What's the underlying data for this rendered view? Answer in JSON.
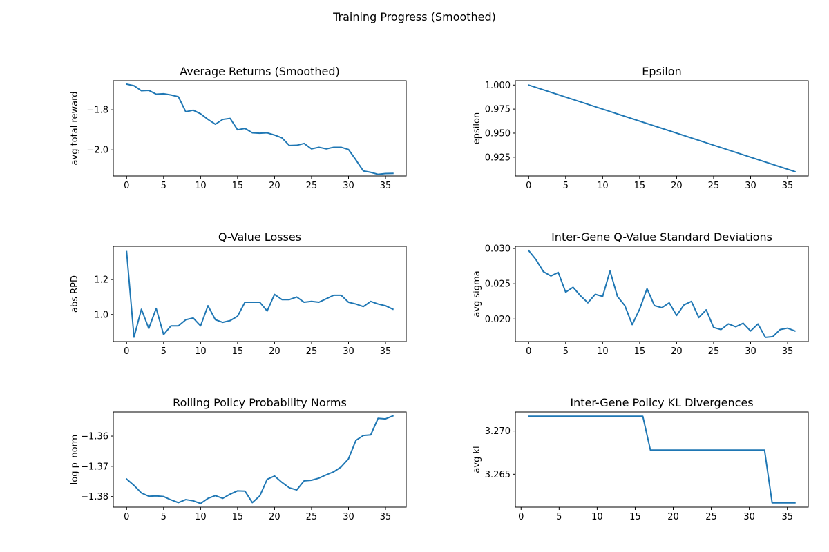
{
  "suptitle": "Training Progress (Smoothed)",
  "line_color": "#1f77b4",
  "chart_data": [
    {
      "type": "line",
      "title": "Average Returns (Smoothed)",
      "xlabel": "",
      "ylabel": "avg total reward",
      "xlim": [
        -1.8,
        37.8
      ],
      "ylim": [
        -2.13,
        -1.655
      ],
      "xticks": [
        0,
        5,
        10,
        15,
        20,
        25,
        30,
        35
      ],
      "yticks": [
        -2.0,
        -1.8
      ],
      "ytick_labels": [
        "−2.0",
        "−1.8"
      ],
      "x": [
        0,
        1,
        2,
        3,
        4,
        5,
        6,
        7,
        8,
        9,
        10,
        11,
        12,
        13,
        14,
        15,
        16,
        17,
        18,
        19,
        20,
        21,
        22,
        23,
        24,
        25,
        26,
        27,
        28,
        29,
        30,
        31,
        32,
        33,
        34,
        35,
        36
      ],
      "y": [
        -1.672,
        -1.68,
        -1.705,
        -1.703,
        -1.722,
        -1.72,
        -1.726,
        -1.735,
        -1.81,
        -1.802,
        -1.82,
        -1.848,
        -1.872,
        -1.848,
        -1.843,
        -1.9,
        -1.893,
        -1.915,
        -1.917,
        -1.915,
        -1.926,
        -1.94,
        -1.978,
        -1.977,
        -1.968,
        -1.995,
        -1.987,
        -1.995,
        -1.987,
        -1.987,
        -1.998,
        -2.05,
        -2.105,
        -2.112,
        -2.122,
        -2.118,
        -2.117
      ]
    },
    {
      "type": "line",
      "title": "Epsilon",
      "xlabel": "",
      "ylabel": "epsilon",
      "xlim": [
        -1.8,
        37.8
      ],
      "ylim": [
        0.9055,
        1.0045
      ],
      "xticks": [
        0,
        5,
        10,
        15,
        20,
        25,
        30,
        35
      ],
      "yticks": [
        0.925,
        0.95,
        0.975,
        1.0
      ],
      "ytick_labels": [
        "0.925",
        "0.950",
        "0.975",
        "1.000"
      ],
      "x": [
        0,
        36
      ],
      "y": [
        1.0,
        0.91
      ]
    },
    {
      "type": "line",
      "title": "Q-Value Losses",
      "xlabel": "",
      "ylabel": "abs RPD",
      "xlim": [
        -1.8,
        37.8
      ],
      "ylim": [
        0.845,
        1.39
      ],
      "xticks": [
        0,
        5,
        10,
        15,
        20,
        25,
        30,
        35
      ],
      "yticks": [
        1.0,
        1.2
      ],
      "ytick_labels": [
        "1.0",
        "1.2"
      ],
      "x": [
        0,
        1,
        2,
        3,
        4,
        5,
        6,
        7,
        8,
        9,
        10,
        11,
        12,
        13,
        14,
        15,
        16,
        17,
        18,
        19,
        20,
        21,
        22,
        23,
        24,
        25,
        26,
        27,
        28,
        29,
        30,
        31,
        32,
        33,
        34,
        35,
        36
      ],
      "y": [
        1.36,
        0.87,
        1.03,
        0.92,
        1.035,
        0.885,
        0.935,
        0.935,
        0.97,
        0.98,
        0.935,
        1.05,
        0.97,
        0.955,
        0.965,
        0.99,
        1.07,
        1.07,
        1.07,
        1.02,
        1.115,
        1.085,
        1.085,
        1.1,
        1.07,
        1.075,
        1.07,
        1.09,
        1.11,
        1.11,
        1.07,
        1.06,
        1.045,
        1.075,
        1.06,
        1.05,
        1.03
      ]
    },
    {
      "type": "line",
      "title": "Inter-Gene Q-Value Standard Deviations",
      "xlabel": "",
      "ylabel": "avg sigma",
      "xlim": [
        -1.8,
        37.8
      ],
      "ylim": [
        0.0168,
        0.0303
      ],
      "xticks": [
        0,
        5,
        10,
        15,
        20,
        25,
        30,
        35
      ],
      "yticks": [
        0.02,
        0.025,
        0.03
      ],
      "ytick_labels": [
        "0.020",
        "0.025",
        "0.030"
      ],
      "x": [
        0,
        1,
        2,
        3,
        4,
        5,
        6,
        7,
        8,
        9,
        10,
        11,
        12,
        13,
        14,
        15,
        16,
        17,
        18,
        19,
        20,
        21,
        22,
        23,
        24,
        25,
        26,
        27,
        28,
        29,
        30,
        31,
        32,
        33,
        34,
        35,
        36
      ],
      "y": [
        0.0297,
        0.0284,
        0.0267,
        0.0261,
        0.0266,
        0.0238,
        0.0245,
        0.0233,
        0.0223,
        0.0235,
        0.0232,
        0.0268,
        0.0232,
        0.0219,
        0.0192,
        0.0214,
        0.0243,
        0.0219,
        0.0216,
        0.0223,
        0.0205,
        0.022,
        0.0225,
        0.0202,
        0.0213,
        0.0188,
        0.0185,
        0.0193,
        0.0189,
        0.0194,
        0.0183,
        0.0193,
        0.0174,
        0.0175,
        0.0185,
        0.0187,
        0.0183
      ]
    },
    {
      "type": "line",
      "title": "Rolling Policy Probability Norms",
      "xlabel": "",
      "ylabel": "log p_norm",
      "xlim": [
        -1.8,
        37.8
      ],
      "ylim": [
        -1.3835,
        -1.352
      ],
      "xticks": [
        0,
        5,
        10,
        15,
        20,
        25,
        30,
        35
      ],
      "yticks": [
        -1.38,
        -1.37,
        -1.36
      ],
      "ytick_labels": [
        "−1.38",
        "−1.37",
        "−1.36"
      ],
      "x": [
        0,
        1,
        2,
        3,
        4,
        5,
        6,
        7,
        8,
        9,
        10,
        11,
        12,
        13,
        14,
        15,
        16,
        17,
        18,
        19,
        20,
        21,
        22,
        23,
        24,
        25,
        26,
        27,
        28,
        29,
        30,
        31,
        32,
        33,
        34,
        35,
        36
      ],
      "y": [
        -1.3742,
        -1.3763,
        -1.3788,
        -1.3799,
        -1.3798,
        -1.38,
        -1.3811,
        -1.382,
        -1.381,
        -1.3814,
        -1.3823,
        -1.3806,
        -1.3797,
        -1.3806,
        -1.3792,
        -1.3781,
        -1.3782,
        -1.382,
        -1.3798,
        -1.3743,
        -1.3732,
        -1.3753,
        -1.3771,
        -1.3778,
        -1.3748,
        -1.3746,
        -1.3739,
        -1.3728,
        -1.3718,
        -1.3702,
        -1.3675,
        -1.3614,
        -1.3598,
        -1.3596,
        -1.3541,
        -1.3543,
        -1.3533
      ]
    },
    {
      "type": "line",
      "title": "Inter-Gene Policy KL Divergences",
      "xlabel": "",
      "ylabel": "avg kl",
      "xlim": [
        -0.75,
        37.75
      ],
      "ylim": [
        3.2612,
        3.2722
      ],
      "xticks": [
        0,
        5,
        10,
        15,
        20,
        25,
        30,
        35
      ],
      "yticks": [
        3.265,
        3.27
      ],
      "ytick_labels": [
        "3.265",
        "3.270"
      ],
      "x": [
        1,
        16,
        17,
        32,
        33,
        36
      ],
      "y": [
        3.2717,
        3.2717,
        3.2678,
        3.2678,
        3.2617,
        3.2617
      ]
    }
  ]
}
